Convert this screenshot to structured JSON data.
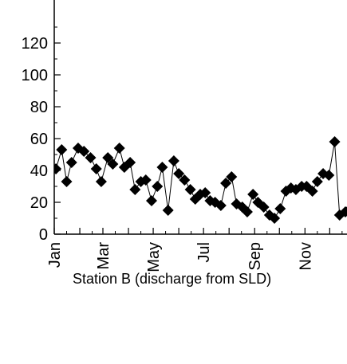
{
  "chart_data": {
    "type": "scatter",
    "connected": true,
    "annotation": "Station B (discharge from SLD)",
    "y_ticks": [
      "0",
      "20",
      "40",
      "60",
      "80",
      "100",
      "120"
    ],
    "x_tick_labels": [
      "Jan",
      "Mar",
      "May",
      "Jul",
      "Sep",
      "Nov"
    ],
    "xlim": [
      1,
      365
    ],
    "ylim": [
      0,
      135
    ],
    "grid": false,
    "colors": {
      "marker": "#000000",
      "line": "#000000"
    },
    "series": [
      {
        "x": [
          3,
          10,
          16,
          22,
          30,
          37,
          45,
          52,
          58,
          66,
          72,
          80,
          86,
          93,
          99,
          106,
          112,
          119,
          126,
          132,
          139,
          146,
          152,
          159,
          166,
          172,
          178,
          184,
          190,
          196,
          203,
          209,
          216,
          222,
          229,
          235,
          242,
          248,
          255,
          262,
          268,
          275,
          282,
          288,
          294,
          301,
          307,
          314,
          320,
          327,
          334,
          341,
          347,
          354,
          360,
          365
        ],
        "y": [
          41,
          53,
          33,
          45,
          54,
          52,
          48,
          41,
          33,
          48,
          44,
          54,
          42,
          45,
          28,
          33,
          34,
          21,
          30,
          42,
          15,
          46,
          38,
          34,
          28,
          22,
          25,
          26,
          21,
          20,
          18,
          32,
          36,
          19,
          17,
          14,
          25,
          20,
          17,
          12,
          10,
          16,
          27,
          29,
          28,
          30,
          30,
          27,
          33,
          38,
          37,
          58,
          12,
          14,
          16,
          18
        ]
      }
    ]
  }
}
